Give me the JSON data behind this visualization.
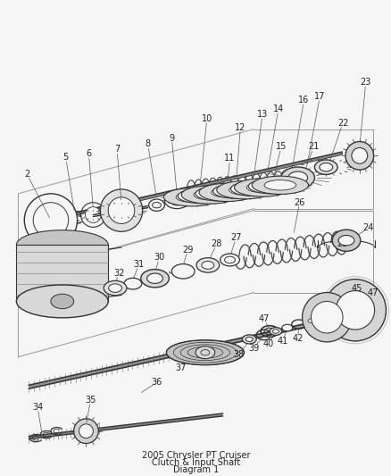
{
  "title": "2005 Chrysler PT Cruiser\nClutch & Input Shaft\nDiagram 1",
  "bg": "#f5f5f5",
  "lc": "#333333",
  "tc": "#222222",
  "fig_w": 4.39,
  "fig_h": 5.33,
  "dpi": 100,
  "gray1": "#cccccc",
  "gray2": "#aaaaaa",
  "gray3": "#888888",
  "gray4": "#666666",
  "white": "#ffffff",
  "darkgray": "#444444"
}
